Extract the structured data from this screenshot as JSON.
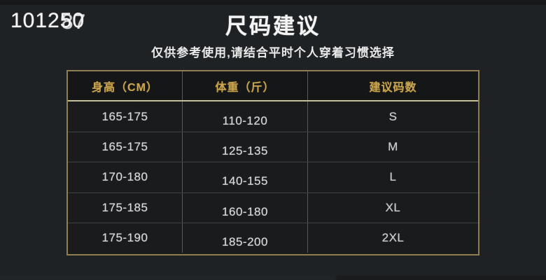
{
  "frame_counter": {
    "base": "1012",
    "digits_a": "50",
    "digits_b": "87"
  },
  "chart_data": {
    "type": "table",
    "title": "尺码建议",
    "subtitle": "仅供参考使用,请结合平时个人穿着习惯选择",
    "columns": [
      "身高（CM）",
      "体重（斤）",
      "建议码数"
    ],
    "rows": [
      [
        "165-175",
        "110-120",
        "S"
      ],
      [
        "165-175",
        "125-135",
        "M"
      ],
      [
        "170-180",
        "140-155",
        "L"
      ],
      [
        "175-185",
        "160-180",
        "XL"
      ],
      [
        "175-190",
        "185-200",
        "2XL"
      ]
    ]
  },
  "colors": {
    "background": "#1f2224",
    "table_border_gold": "#8f7e52",
    "header_text_gold": "#c9a44d",
    "header_separator": "#c9c09a",
    "body_text": "#d9d9d9",
    "row_separator": "#3e4245"
  }
}
